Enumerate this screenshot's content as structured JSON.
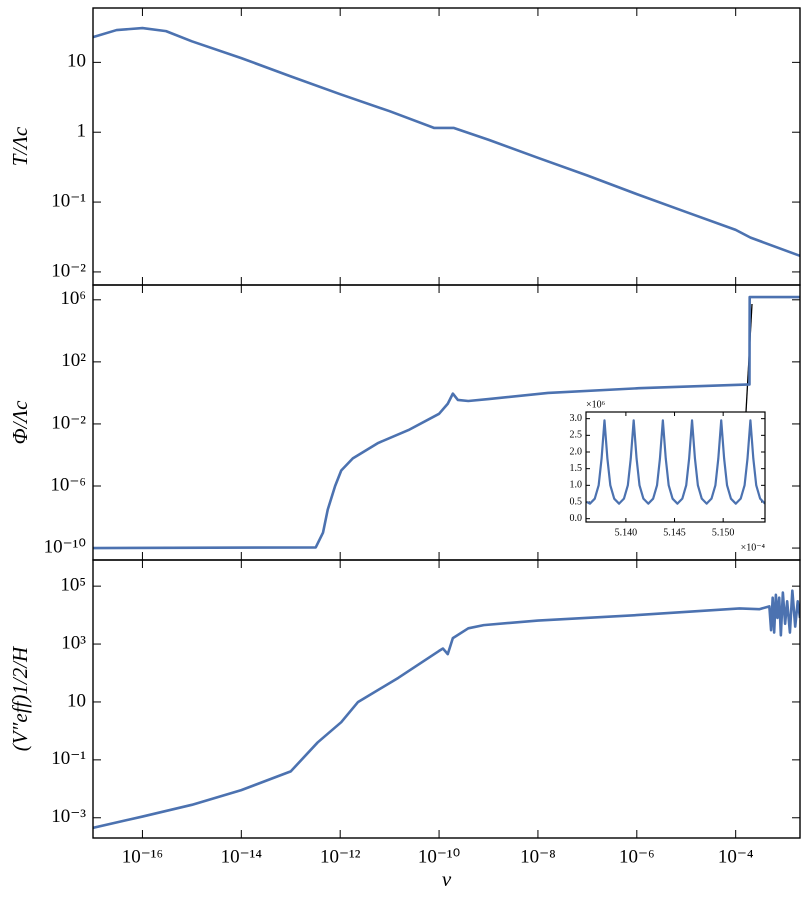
{
  "chart_data": [
    {
      "type": "line",
      "ylabel": "T/Λc",
      "xscale": "log",
      "yscale": "log",
      "xlim": [
        1e-17,
        0.002
      ],
      "ylim": [
        0.0065,
        60
      ],
      "yticks": [
        {
          "value": 0.01,
          "label": "10⁻²"
        },
        {
          "value": 0.1,
          "label": "10⁻¹"
        },
        1,
        10
      ],
      "color": "#4c72b0",
      "x": [
        1e-17,
        3e-17,
        1e-16,
        3e-16,
        1e-15,
        1e-14,
        1e-13,
        1e-12,
        1e-11,
        8e-11,
        2e-10,
        1e-09,
        1e-08,
        1e-07,
        1e-06,
        1e-05,
        0.0001,
        0.0002,
        0.002
      ],
      "values": [
        23,
        29,
        31,
        28,
        20,
        11.5,
        6.3,
        3.5,
        2.0,
        1.15,
        1.15,
        0.78,
        0.43,
        0.24,
        0.13,
        0.072,
        0.04,
        0.031,
        0.017
      ]
    },
    {
      "type": "line",
      "ylabel": "Φ/Λc",
      "xscale": "log",
      "yscale": "log",
      "xlim": [
        1e-17,
        0.002
      ],
      "ylim": [
        1.7e-11,
        9000000.0
      ],
      "yticks": [
        {
          "value": 1e-10,
          "label": "10⁻¹⁰"
        },
        {
          "value": 1e-06,
          "label": "10⁻⁶"
        },
        {
          "value": 0.01,
          "label": "10⁻²"
        },
        {
          "value": 100,
          "label": "10²"
        },
        {
          "value": 1000000.0,
          "label": "10⁶"
        }
      ],
      "color": "#4c72b0",
      "x": [
        1e-17,
        3.2e-13,
        4.5e-13,
        5.6e-13,
        7.9e-13,
        1.05e-12,
        1.8e-12,
        5.9e-12,
        2.4e-11,
        1e-10,
        1.5e-10,
        1.9e-10,
        2.4e-10,
        3.9e-10,
        1e-09,
        1.6e-08,
        1.1e-06,
        0.00019,
        0.000192,
        0.002
      ],
      "values": [
        1e-10,
        1.1e-10,
        1e-09,
        3e-08,
        1e-06,
        1e-05,
        6e-05,
        0.0006,
        0.004,
        0.045,
        0.2,
        0.9,
        0.35,
        0.3,
        0.4,
        1.0,
        2.0,
        3.5,
        1500000.0,
        1500000.0
      ]
    },
    {
      "type": "line",
      "ylabel": "(V″eff)1/2/H",
      "xlabel": "v",
      "xscale": "log",
      "yscale": "log",
      "xlim": [
        1e-17,
        0.002
      ],
      "ylim": [
        0.0002,
        800000.0
      ],
      "xticks": [
        {
          "value": 1e-16,
          "label": "10⁻¹⁶"
        },
        {
          "value": 1e-14,
          "label": "10⁻¹⁴"
        },
        {
          "value": 1e-12,
          "label": "10⁻¹²"
        },
        {
          "value": 1e-10,
          "label": "10⁻¹⁰"
        },
        {
          "value": 1e-08,
          "label": "10⁻⁸"
        },
        {
          "value": 1e-06,
          "label": "10⁻⁶"
        },
        {
          "value": 0.0001,
          "label": "10⁻⁴"
        }
      ],
      "yticks": [
        {
          "value": 0.001,
          "label": "10⁻³"
        },
        {
          "value": 0.1,
          "label": "10⁻¹"
        },
        10,
        {
          "value": 1000,
          "label": "10³"
        },
        {
          "value": 100000,
          "label": "10⁵"
        }
      ],
      "color": "#4c72b0",
      "x": [
        1e-17,
        1e-16,
        1e-15,
        1e-14,
        1e-13,
        3.5e-13,
        1.05e-12,
        2.3e-12,
        1.5e-11,
        1e-10,
        1.2e-10,
        1.5e-10,
        1.9e-10,
        3.9e-10,
        8e-10,
        1e-08,
        1e-06,
        0.00012,
        0.0003,
        0.00048,
        0.00052,
        0.00056,
        0.0006,
        0.00065,
        0.0007,
        0.00076,
        0.00082,
        0.0009,
        0.001,
        0.0011,
        0.00125,
        0.0014,
        0.0016,
        0.0018,
        0.002
      ],
      "values": [
        0.00045,
        0.0011,
        0.0028,
        0.009,
        0.04,
        0.4,
        2,
        10,
        68,
        580,
        700,
        450,
        1600,
        3500,
        4500,
        6500,
        10000,
        17000,
        16000,
        20000,
        3000,
        40000,
        2500,
        50000,
        8000,
        40000,
        2000,
        60000,
        5000,
        30000,
        2500,
        70000,
        4000,
        30000,
        8000
      ]
    },
    {
      "type": "line",
      "x_offset_label": "×10⁻⁴",
      "y_offset_label": "×10⁶",
      "xlim": [
        5.1359,
        5.1543
      ],
      "ylim": [
        -0.1,
        3.2
      ],
      "xticks": [
        {
          "value": 5.14,
          "label": "5.140"
        },
        {
          "value": 5.145,
          "label": "5.145"
        },
        {
          "value": 5.15,
          "label": "5.150"
        }
      ],
      "yticks": [
        {
          "value": 0,
          "label": "0.0"
        },
        0.5,
        {
          "value": 1,
          "label": "1.0"
        },
        1.5,
        {
          "value": 2,
          "label": "2.0"
        },
        2.5,
        {
          "value": 3,
          "label": "3.0"
        }
      ],
      "color": "#4c72b0",
      "x": [
        5.136,
        5.1363,
        5.1368,
        5.1372,
        5.1375,
        5.1378,
        5.1381,
        5.1384,
        5.1388,
        5.1393,
        5.1398,
        5.1402,
        5.1405,
        5.1408,
        5.1411,
        5.1414,
        5.1418,
        5.1423,
        5.1428,
        5.1432,
        5.1435,
        5.1438,
        5.1441,
        5.1444,
        5.1448,
        5.1453,
        5.1458,
        5.1462,
        5.1465,
        5.1468,
        5.1471,
        5.1474,
        5.1478,
        5.1483,
        5.1488,
        5.1492,
        5.1495,
        5.1498,
        5.1501,
        5.1504,
        5.1508,
        5.1513,
        5.1518,
        5.1522,
        5.1525,
        5.1528,
        5.1531,
        5.1534,
        5.1538,
        5.1543
      ],
      "values": [
        0.5,
        0.45,
        0.6,
        1.0,
        1.8,
        2.95,
        1.8,
        1.0,
        0.6,
        0.45,
        0.6,
        1.0,
        1.8,
        2.95,
        1.8,
        1.0,
        0.6,
        0.45,
        0.6,
        1.0,
        1.8,
        2.95,
        1.8,
        1.0,
        0.6,
        0.45,
        0.6,
        1.0,
        1.8,
        2.95,
        1.8,
        1.0,
        0.6,
        0.45,
        0.6,
        1.0,
        1.8,
        2.95,
        1.8,
        1.0,
        0.6,
        0.45,
        0.6,
        1.0,
        1.8,
        2.95,
        1.8,
        1.0,
        0.6,
        0.45
      ]
    }
  ]
}
